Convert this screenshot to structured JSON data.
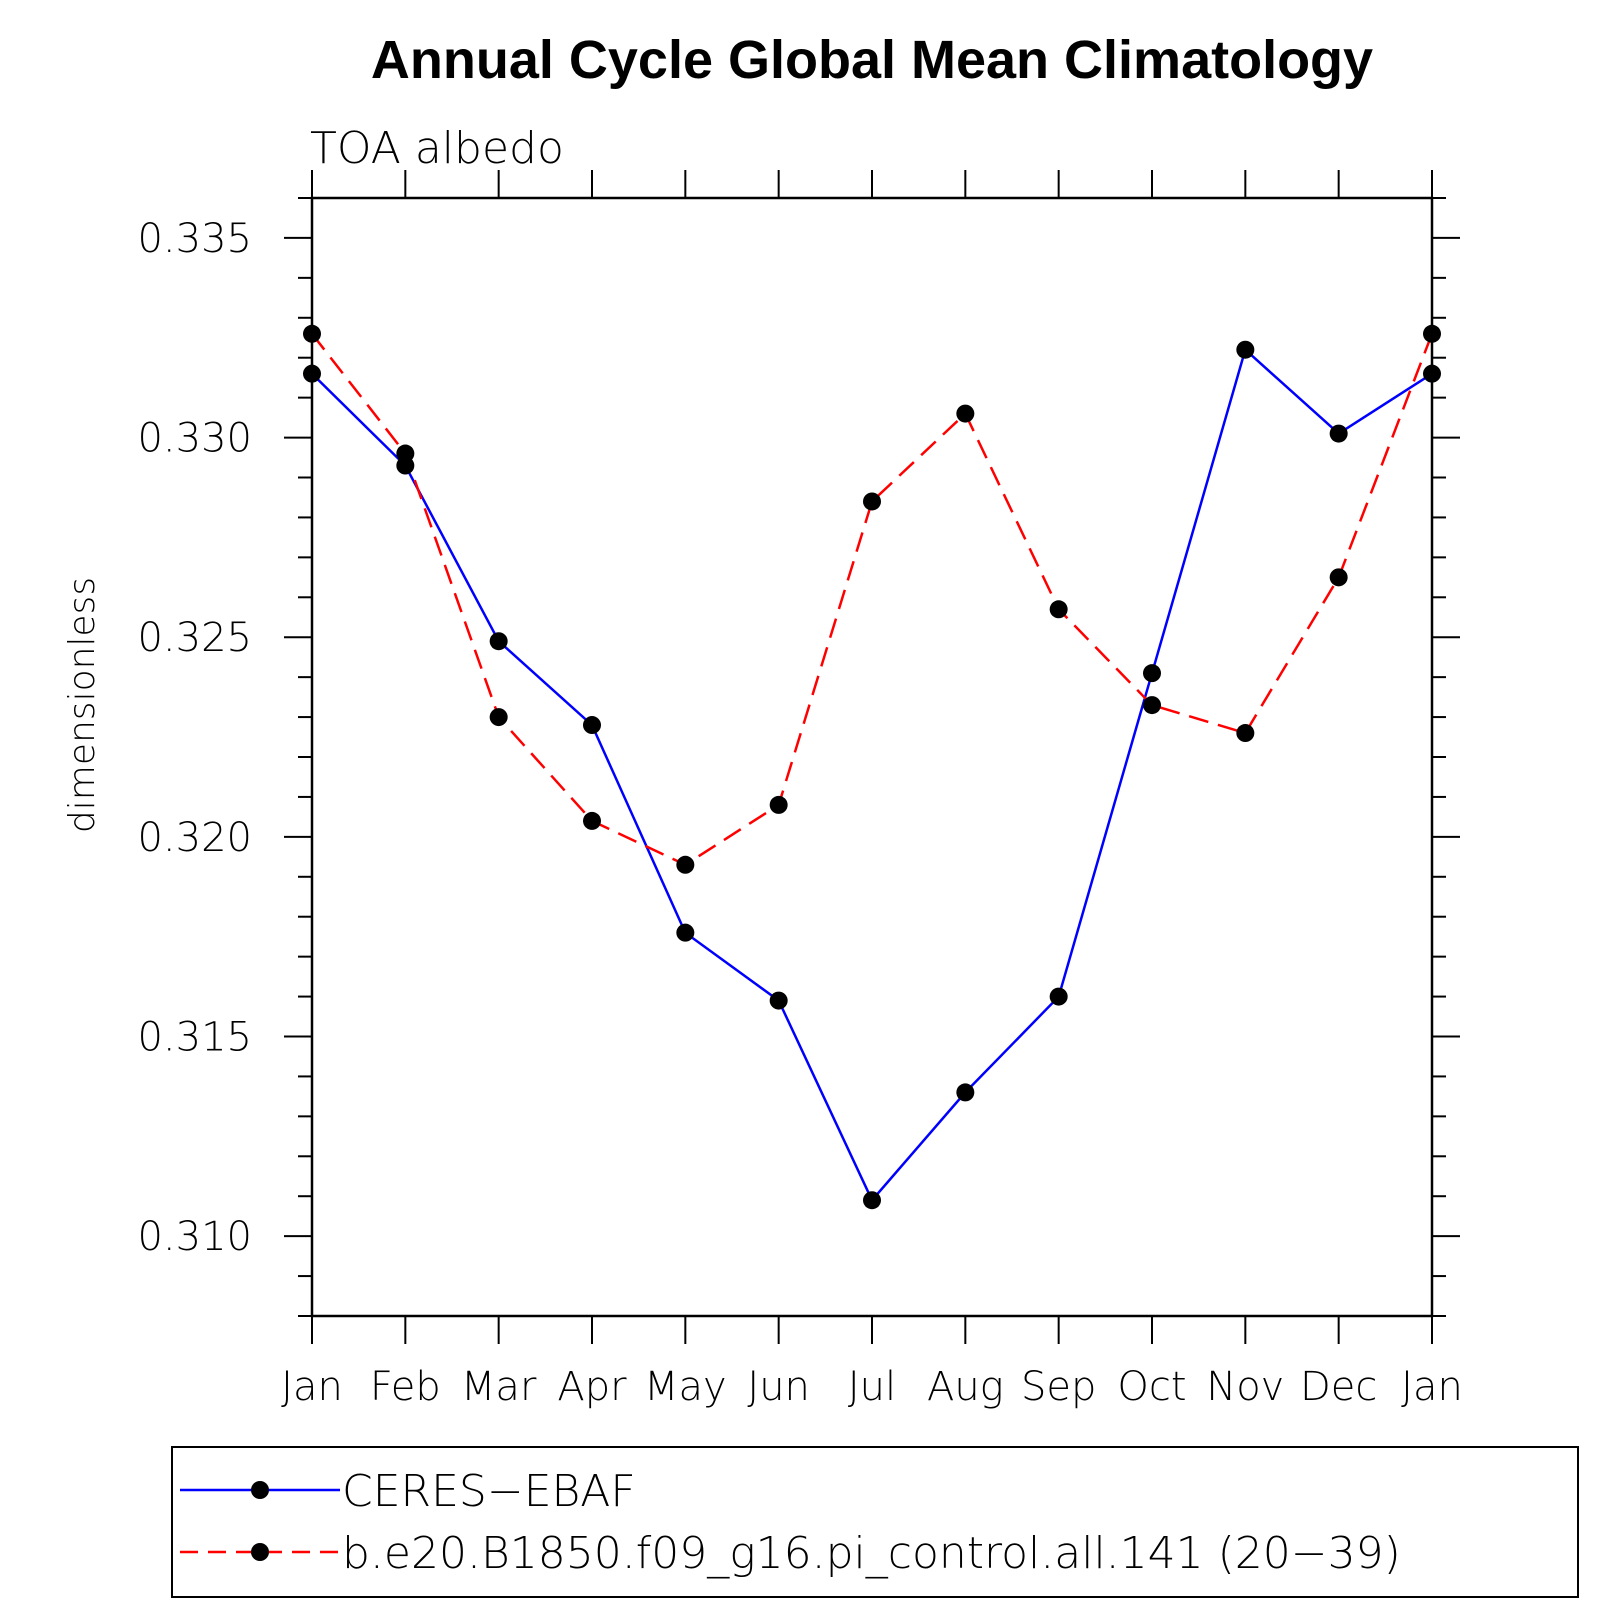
{
  "chart_data": {
    "type": "line",
    "title": "Annual Cycle Global Mean Climatology",
    "subtitle": "TOA albedo",
    "ylabel": "dimensionless",
    "xlabel": "",
    "categories": [
      "Jan",
      "Feb",
      "Mar",
      "Apr",
      "May",
      "Jun",
      "Jul",
      "Aug",
      "Sep",
      "Oct",
      "Nov",
      "Dec",
      "Jan"
    ],
    "ylim": [
      0.308,
      0.336
    ],
    "yticks": [
      0.31,
      0.315,
      0.32,
      0.325,
      0.33,
      0.335
    ],
    "ytick_labels": [
      "0.310",
      "0.315",
      "0.320",
      "0.325",
      "0.330",
      "0.335"
    ],
    "grid": false,
    "legend_position": "bottom",
    "series": [
      {
        "name": "CERES−EBAF",
        "color": "#0000ff",
        "dash": "solid",
        "values": [
          0.3316,
          0.3293,
          0.3249,
          0.3228,
          0.3176,
          0.3159,
          0.3109,
          0.3136,
          0.316,
          0.3241,
          0.3322,
          0.3301,
          0.3316
        ]
      },
      {
        "name": "b.e20.B1850.f09_g16.pi_control.all.141 (20−39)",
        "color": "#ff0000",
        "dash": "dashed",
        "values": [
          0.3326,
          0.3296,
          0.323,
          0.3204,
          0.3193,
          0.3208,
          0.3284,
          0.3306,
          0.3257,
          0.3233,
          0.3226,
          0.3265,
          0.3326
        ]
      }
    ]
  }
}
